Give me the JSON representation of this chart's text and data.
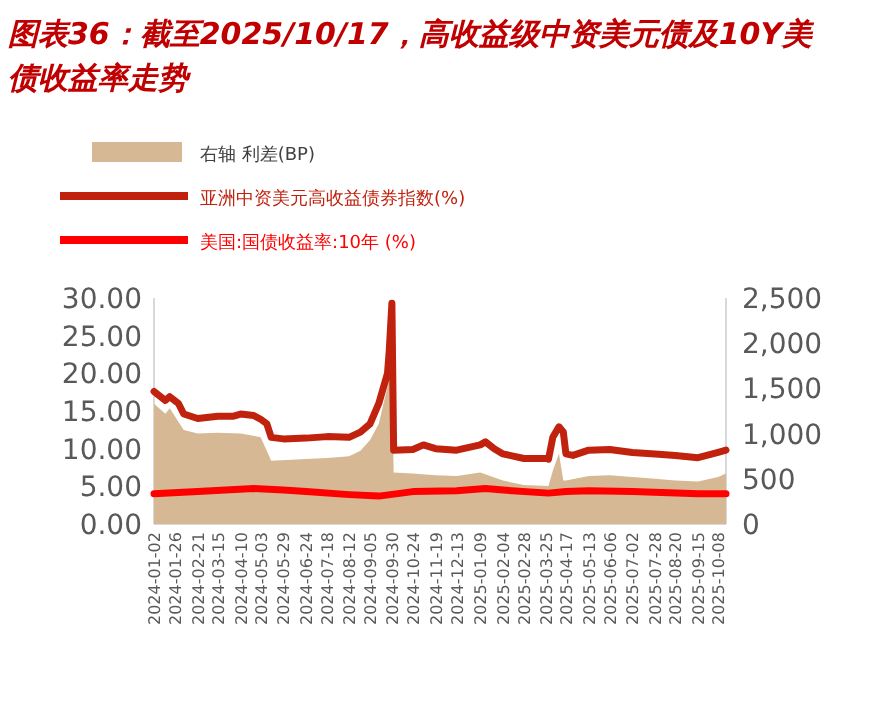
{
  "chart_data": {
    "type": "line",
    "title": "图表36：截至2025/10/17，高收益级中资美元债及10Y美债收益率走势",
    "legend": "top",
    "xlim": [
      "2024-01-02",
      "2025-10-17"
    ],
    "xticks": [
      "2024-01-02",
      "2024-01-26",
      "2024-02-21",
      "2024-03-15",
      "2024-04-10",
      "2024-05-03",
      "2024-05-29",
      "2024-06-24",
      "2024-07-18",
      "2024-08-12",
      "2024-09-05",
      "2024-09-30",
      "2024-10-24",
      "2024-11-19",
      "2024-12-13",
      "2025-01-09",
      "2025-02-04",
      "2025-02-28",
      "2025-03-25",
      "2025-04-17",
      "2025-05-13",
      "2025-06-06",
      "2025-07-02",
      "2025-07-28",
      "2025-08-20",
      "2025-09-15",
      "2025-10-08"
    ],
    "ylim": [
      0,
      30
    ],
    "yticks": [
      {
        "value": 0,
        "label": "0.00"
      },
      {
        "value": 5,
        "label": "5.00"
      },
      {
        "value": 10,
        "label": "10.00"
      },
      {
        "value": 15,
        "label": "15.00"
      },
      {
        "value": 20,
        "label": "20.00"
      },
      {
        "value": 25,
        "label": "25.00"
      },
      {
        "value": 30,
        "label": "30.00"
      }
    ],
    "y2lim": [
      0,
      2500
    ],
    "y2ticks": [
      0,
      500,
      {
        "value": 1000,
        "label": "1,000"
      },
      {
        "value": 1500,
        "label": "1,500"
      },
      {
        "value": 2000,
        "label": "2,000"
      },
      {
        "value": 2500,
        "label": "2,500"
      }
    ],
    "series": [
      {
        "name": "右轴 利差(BP)",
        "type": "area",
        "axis": "y2",
        "color": "#d6b994",
        "x": [
          "2024-01-02",
          "2024-01-15",
          "2024-01-20",
          "2024-02-05",
          "2024-02-21",
          "2024-03-15",
          "2024-04-10",
          "2024-05-03",
          "2024-05-15",
          "2024-06-24",
          "2024-07-18",
          "2024-08-12",
          "2024-08-25",
          "2024-09-05",
          "2024-09-15",
          "2024-09-25",
          "2024-09-30",
          "2024-10-02",
          "2024-10-24",
          "2024-11-19",
          "2024-12-13",
          "2025-01-09",
          "2025-02-04",
          "2025-02-28",
          "2025-03-28",
          "2025-04-02",
          "2025-04-09",
          "2025-04-14",
          "2025-04-17",
          "2025-05-13",
          "2025-06-06",
          "2025-07-02",
          "2025-07-28",
          "2025-08-20",
          "2025-09-15",
          "2025-10-08",
          "2025-10-17"
        ],
        "values": [
          1330,
          1220,
          1280,
          1040,
          1000,
          1010,
          1000,
          960,
          700,
          720,
          730,
          750,
          810,
          930,
          1110,
          1520,
          1850,
          570,
          560,
          540,
          530,
          570,
          480,
          430,
          420,
          590,
          780,
          480,
          480,
          530,
          540,
          520,
          500,
          480,
          470,
          520,
          560
        ]
      },
      {
        "name": "亚洲中资美元高收益债券指数(%)",
        "color": "#c0220e",
        "x": [
          "2024-01-02",
          "2024-01-15",
          "2024-01-20",
          "2024-01-30",
          "2024-02-05",
          "2024-02-21",
          "2024-03-15",
          "2024-04-01",
          "2024-04-10",
          "2024-04-25",
          "2024-05-03",
          "2024-05-10",
          "2024-05-15",
          "2024-05-29",
          "2024-06-24",
          "2024-07-18",
          "2024-08-12",
          "2024-08-25",
          "2024-09-05",
          "2024-09-15",
          "2024-09-25",
          "2024-09-27",
          "2024-09-30",
          "2024-10-02",
          "2024-10-24",
          "2024-11-05",
          "2024-11-19",
          "2024-12-13",
          "2025-01-09",
          "2025-01-15",
          "2025-01-25",
          "2025-02-04",
          "2025-02-28",
          "2025-03-25",
          "2025-03-28",
          "2025-04-02",
          "2025-04-09",
          "2025-04-14",
          "2025-04-17",
          "2025-04-25",
          "2025-05-13",
          "2025-06-06",
          "2025-07-02",
          "2025-07-28",
          "2025-08-20",
          "2025-09-15",
          "2025-09-25",
          "2025-10-08",
          "2025-10-17"
        ],
        "values": [
          17.6,
          16.4,
          16.9,
          16.0,
          14.6,
          14.0,
          14.3,
          14.3,
          14.6,
          14.4,
          13.9,
          13.3,
          11.5,
          11.3,
          11.4,
          11.6,
          11.5,
          12.2,
          13.3,
          16.0,
          20.0,
          23.1,
          29.3,
          9.8,
          9.9,
          10.5,
          10.0,
          9.8,
          10.5,
          10.9,
          10.0,
          9.3,
          8.7,
          8.7,
          8.6,
          11.5,
          12.9,
          12.2,
          9.3,
          9.1,
          9.8,
          9.9,
          9.5,
          9.3,
          9.1,
          8.8,
          9.1,
          9.5,
          9.8
        ]
      },
      {
        "name": "美国:国债收益率:10年 (%)",
        "color": "#ff0000",
        "x": [
          "2024-01-02",
          "2024-02-21",
          "2024-04-25",
          "2024-05-29",
          "2024-06-24",
          "2024-08-12",
          "2024-09-15",
          "2024-10-24",
          "2024-12-13",
          "2025-01-15",
          "2025-02-04",
          "2025-03-28",
          "2025-04-17",
          "2025-05-13",
          "2025-07-02",
          "2025-09-15",
          "2025-10-17"
        ],
        "values": [
          4.0,
          4.3,
          4.7,
          4.5,
          4.3,
          3.9,
          3.7,
          4.3,
          4.4,
          4.7,
          4.5,
          4.1,
          4.3,
          4.4,
          4.3,
          4.0,
          4.0
        ]
      }
    ]
  }
}
